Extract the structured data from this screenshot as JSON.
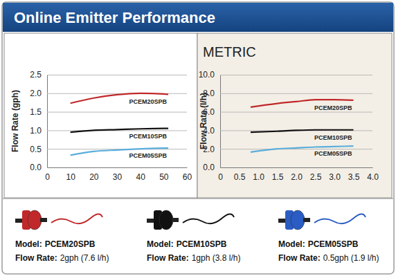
{
  "title": "Online Emitter Performance",
  "chart_data": [
    {
      "type": "line",
      "y_label": "Flow Rate (gph)",
      "x": [
        10,
        20,
        30,
        40,
        50,
        52
      ],
      "series": [
        {
          "name": "PCEM20SPB",
          "color": "#c0282a",
          "values": [
            1.73,
            1.87,
            1.96,
            2.0,
            1.98,
            1.97
          ]
        },
        {
          "name": "PCEM10SPB",
          "color": "#111111",
          "values": [
            0.95,
            1.0,
            1.02,
            1.04,
            1.05,
            1.05
          ]
        },
        {
          "name": "PCEM05SPB",
          "color": "#5aaedc",
          "values": [
            0.33,
            0.43,
            0.47,
            0.5,
            0.52,
            0.52
          ]
        }
      ],
      "xlim": [
        0,
        60
      ],
      "xticks": [
        0,
        10,
        20,
        30,
        40,
        50,
        60
      ],
      "ylim": [
        0,
        2.5
      ],
      "yticks": [
        {
          "value": 0,
          "label": "0.0"
        },
        0.5,
        {
          "value": 1,
          "label": "1.0"
        },
        1.5,
        {
          "value": 2,
          "label": "2.0"
        },
        2.5
      ],
      "grid": true
    },
    {
      "type": "line",
      "title": "METRIC",
      "y_label": "Flow Rate (l/h)",
      "x": [
        0.8,
        1.5,
        2.0,
        2.5,
        3.0,
        3.5
      ],
      "series": [
        {
          "name": "PCEM20SPB",
          "color": "#c0282a",
          "values": [
            6.5,
            6.9,
            7.1,
            7.3,
            7.3,
            7.25
          ]
        },
        {
          "name": "PCEM10SPB",
          "color": "#111111",
          "values": [
            3.8,
            3.9,
            4.0,
            4.05,
            4.05,
            4.05
          ]
        },
        {
          "name": "PCEM05SPB",
          "color": "#5aaedc",
          "values": [
            1.65,
            2.0,
            2.1,
            2.2,
            2.25,
            2.3
          ]
        }
      ],
      "xlim": [
        0,
        4
      ],
      "xticks": [
        0,
        0.5,
        {
          "value": 1,
          "label": "1.0"
        },
        1.5,
        {
          "value": 2,
          "label": "2.0"
        },
        2.5,
        {
          "value": 3,
          "label": "3.0"
        },
        3.5,
        {
          "value": 4,
          "label": "4.0"
        }
      ],
      "ylim": [
        0,
        10
      ],
      "yticks": [
        {
          "value": 0,
          "label": "0.0"
        },
        {
          "value": 2,
          "label": "2.0"
        },
        {
          "value": 4,
          "label": "4.0"
        },
        {
          "value": 6,
          "label": "6.0"
        },
        {
          "value": 8,
          "label": "8.0"
        },
        {
          "value": 10,
          "label": "10.0"
        }
      ],
      "grid": true
    }
  ],
  "models": [
    {
      "model_label": "Model:",
      "model": "PCEM20SPB",
      "flow_label": "Flow Rate:",
      "flow": "2gph (7.6 l/h)",
      "color": "#c0282a"
    },
    {
      "model_label": "Model:",
      "model": "PCEM10SPB",
      "flow_label": "Flow Rate:",
      "flow": "1gph (3.8 l/h)",
      "color": "#111111"
    },
    {
      "model_label": "Model:",
      "model": "PCEM05SPB",
      "flow_label": "Flow Rate:",
      "flow": "0.5gph (1.9 l/h)",
      "color": "#2a5cc4"
    }
  ]
}
